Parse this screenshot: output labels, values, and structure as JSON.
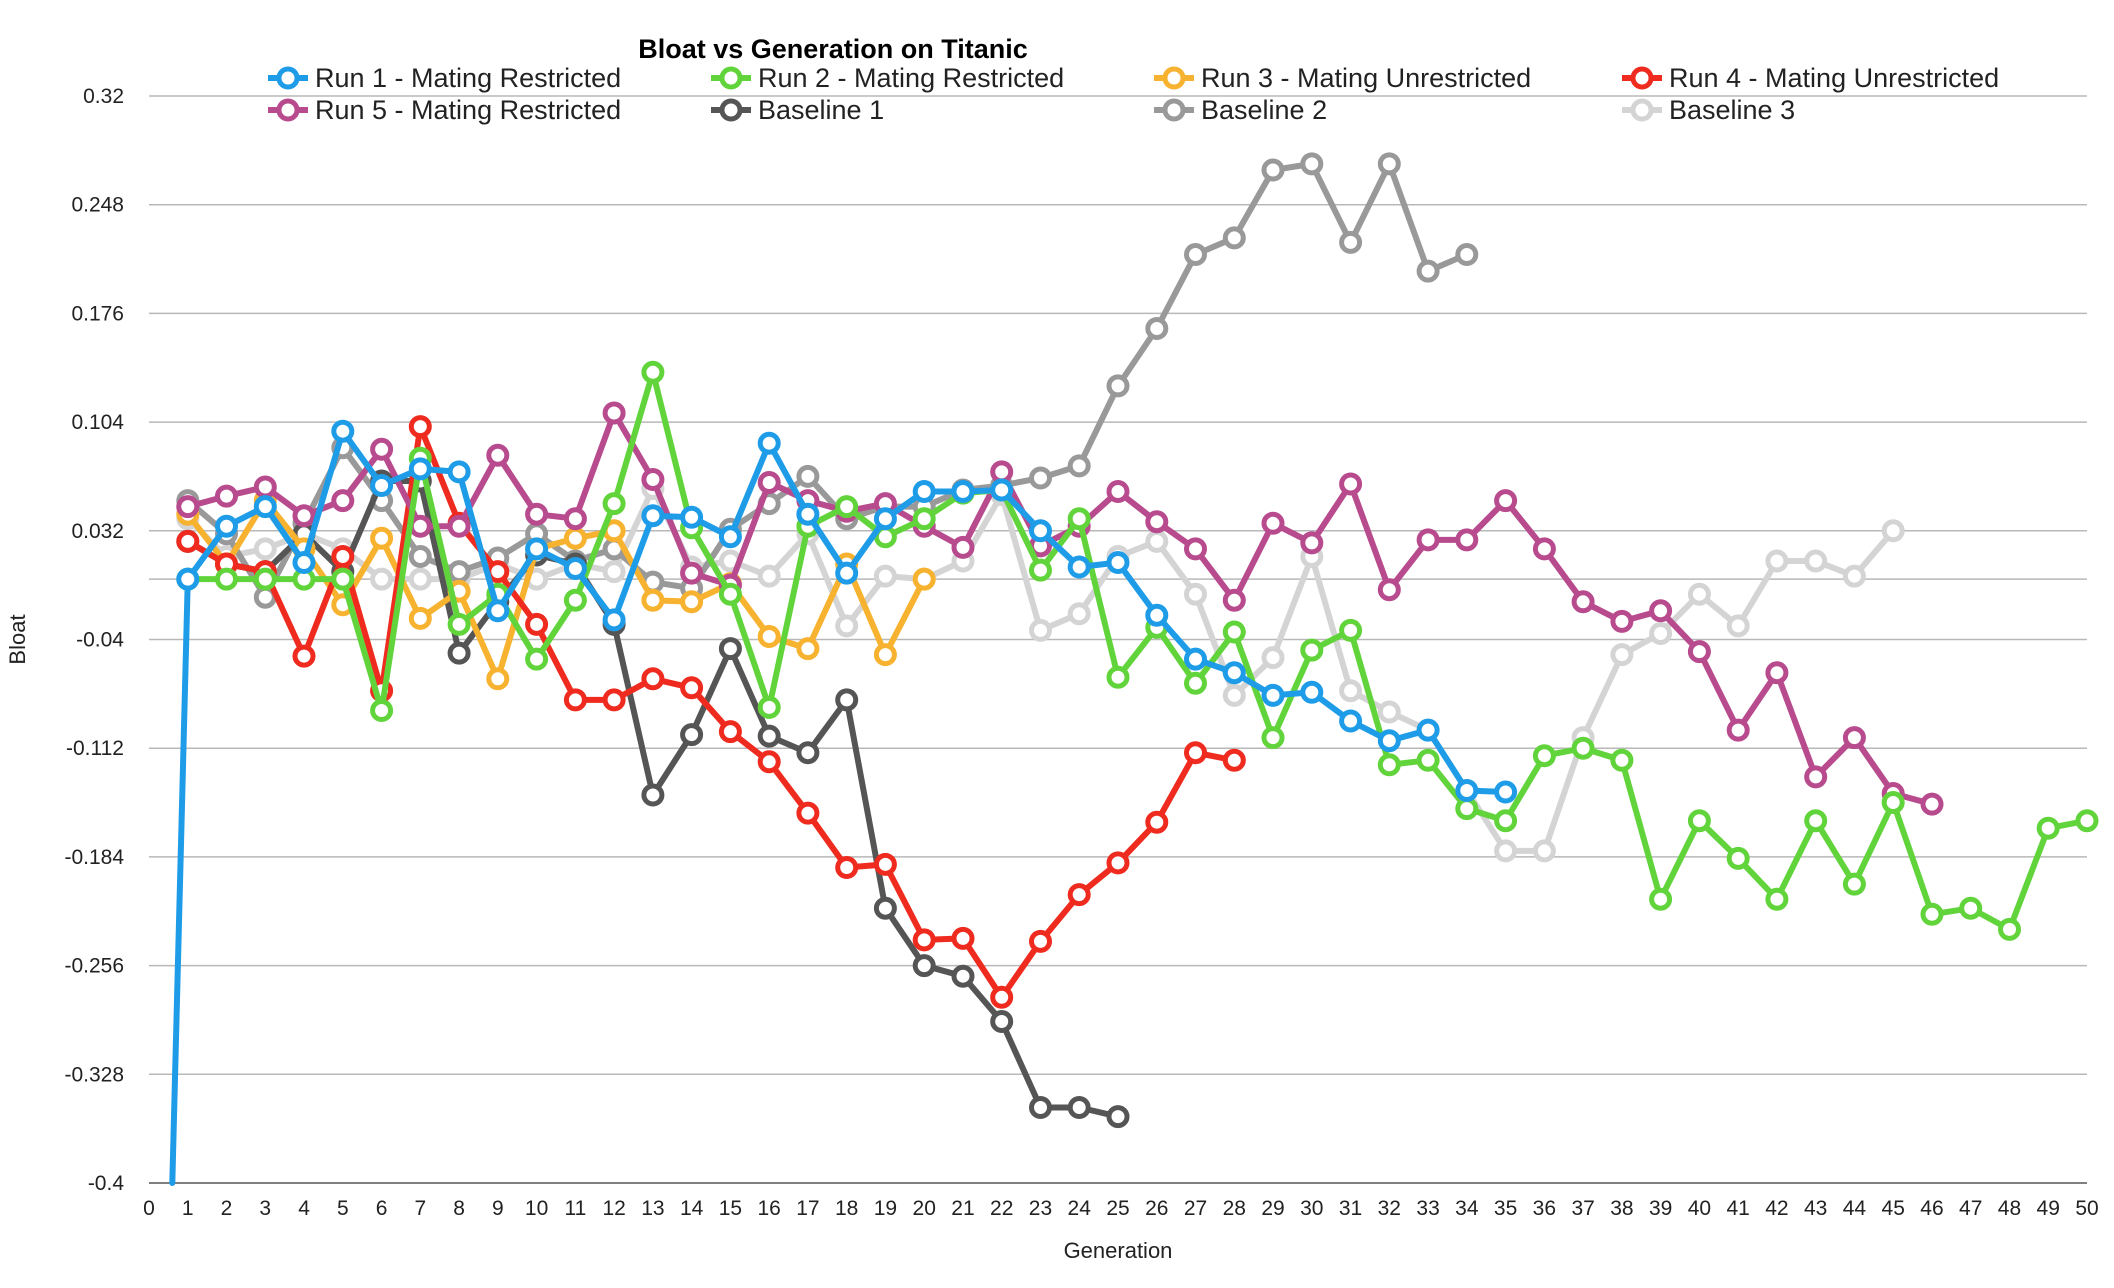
{
  "chart_data": {
    "type": "line",
    "title": "Bloat vs Generation on Titanic",
    "xlabel": "Generation",
    "ylabel": "Bloat",
    "xlim": [
      0,
      50
    ],
    "ylim": [
      -0.4,
      0.32
    ],
    "xticks": [
      0,
      1,
      2,
      3,
      4,
      5,
      6,
      7,
      8,
      9,
      10,
      11,
      12,
      13,
      14,
      15,
      16,
      17,
      18,
      19,
      20,
      21,
      22,
      23,
      24,
      25,
      26,
      27,
      28,
      29,
      30,
      31,
      32,
      33,
      34,
      35,
      36,
      37,
      38,
      39,
      40,
      41,
      42,
      43,
      44,
      45,
      46,
      47,
      48,
      49,
      50
    ],
    "yticks": [
      "0.32",
      "0.248",
      "0.176",
      "0.104",
      "0.032",
      "-0.04",
      "-0.112",
      "-0.184",
      "-0.256",
      "-0.328",
      "-0.4"
    ],
    "grid": true,
    "legend_position": "top",
    "series": [
      {
        "name": "Baseline 3",
        "color": "#d4d4d4",
        "x": [
          1,
          2,
          3,
          4,
          5,
          6,
          7,
          8,
          9,
          10,
          11,
          12,
          13,
          14,
          15,
          16,
          17,
          18,
          19,
          20,
          21,
          22,
          23,
          24,
          25,
          26,
          27,
          28,
          29,
          30,
          31,
          32,
          33,
          34,
          35,
          36,
          37,
          38,
          39,
          40,
          41,
          42,
          43,
          44,
          45
        ],
        "y": [
          0.04,
          0.015,
          0.02,
          0.03,
          0.02,
          0.0,
          0.0,
          0.0,
          0.01,
          0.0,
          0.01,
          0.005,
          0.06,
          0.008,
          0.012,
          0.002,
          0.03,
          -0.031,
          0.002,
          0.0,
          0.012,
          0.056,
          -0.034,
          -0.023,
          0.015,
          0.025,
          -0.01,
          -0.077,
          -0.052,
          0.015,
          -0.074,
          -0.088,
          -0.1,
          -0.14,
          -0.18,
          -0.18,
          -0.105,
          -0.05,
          -0.036,
          -0.01,
          -0.031,
          0.012,
          0.012,
          0.002,
          0.032
        ]
      },
      {
        "name": "Baseline 2",
        "color": "#999999",
        "x": [
          1,
          2,
          3,
          4,
          5,
          6,
          7,
          8,
          9,
          10,
          11,
          12,
          13,
          14,
          15,
          16,
          17,
          18,
          19,
          20,
          21,
          22,
          23,
          24,
          25,
          26,
          27,
          28,
          29,
          30,
          31,
          32,
          33,
          34
        ],
        "y": [
          0.052,
          0.03,
          -0.012,
          0.037,
          0.087,
          0.052,
          0.015,
          0.005,
          0.014,
          0.03,
          0.012,
          0.02,
          -0.002,
          -0.006,
          0.033,
          0.05,
          0.068,
          0.04,
          0.048,
          0.048,
          0.059,
          0.062,
          0.067,
          0.075,
          0.128,
          0.166,
          0.215,
          0.226,
          0.271,
          0.275,
          0.223,
          0.275,
          0.204,
          0.215
        ]
      },
      {
        "name": "Baseline 1",
        "color": "#555555",
        "x": [
          1,
          2,
          3,
          4,
          5,
          6,
          7,
          8,
          9,
          10,
          11,
          12,
          13,
          14,
          15,
          16,
          17,
          18,
          19,
          20,
          21,
          22,
          23,
          24,
          25
        ],
        "y": [
          0.025,
          0.01,
          0.005,
          0.03,
          0.005,
          0.065,
          0.065,
          -0.049,
          -0.015,
          0.016,
          0.01,
          -0.03,
          -0.143,
          -0.103,
          -0.046,
          -0.104,
          -0.115,
          -0.08,
          -0.218,
          -0.256,
          -0.263,
          -0.293,
          -0.35,
          -0.35,
          -0.356
        ]
      },
      {
        "name": "Run 3 - Mating Unrestricted",
        "color": "#f7b22f",
        "x": [
          1,
          2,
          3,
          4,
          5,
          6,
          7,
          8,
          9,
          10,
          11,
          12,
          13,
          14,
          15,
          16,
          17,
          18,
          19,
          20
        ],
        "y": [
          0.043,
          0.01,
          0.052,
          0.02,
          -0.017,
          0.027,
          -0.026,
          -0.008,
          -0.066,
          0.02,
          0.027,
          0.032,
          -0.014,
          -0.015,
          -0.003,
          -0.038,
          -0.046,
          0.01,
          -0.05,
          0.0
        ]
      },
      {
        "name": "Run 4 - Mating Unrestricted",
        "color": "#ef2b1f",
        "x": [
          1,
          2,
          3,
          4,
          5,
          6,
          7,
          8,
          9,
          10,
          11,
          12,
          13,
          14,
          15,
          16,
          17,
          18,
          19,
          20,
          21,
          22,
          23,
          24,
          25,
          26,
          27,
          28
        ],
        "y": [
          0.025,
          0.01,
          0.005,
          -0.051,
          0.015,
          -0.074,
          0.101,
          0.037,
          0.005,
          -0.03,
          -0.08,
          -0.08,
          -0.066,
          -0.072,
          -0.101,
          -0.121,
          -0.155,
          -0.191,
          -0.189,
          -0.239,
          -0.238,
          -0.277,
          -0.24,
          -0.209,
          -0.188,
          -0.161,
          -0.115,
          -0.12
        ]
      },
      {
        "name": "Run 5 - Mating Restricted",
        "color": "#b84a8e",
        "x": [
          1,
          2,
          3,
          4,
          5,
          6,
          7,
          8,
          9,
          10,
          11,
          12,
          13,
          14,
          15,
          16,
          17,
          18,
          19,
          20,
          21,
          22,
          23,
          24,
          25,
          26,
          27,
          28,
          29,
          30,
          31,
          32,
          33,
          34,
          35,
          36,
          37,
          38,
          39,
          40,
          41,
          42,
          43,
          44,
          45,
          46
        ],
        "y": [
          0.048,
          0.055,
          0.061,
          0.042,
          0.052,
          0.086,
          0.035,
          0.035,
          0.082,
          0.043,
          0.04,
          0.11,
          0.066,
          0.004,
          -0.004,
          0.064,
          0.052,
          0.045,
          0.05,
          0.035,
          0.021,
          0.071,
          0.022,
          0.035,
          0.058,
          0.038,
          0.02,
          -0.014,
          0.037,
          0.024,
          0.063,
          -0.007,
          0.026,
          0.026,
          0.052,
          0.02,
          -0.015,
          -0.028,
          -0.021,
          -0.048,
          -0.1,
          -0.062,
          -0.131,
          -0.105,
          -0.142,
          -0.149
        ]
      },
      {
        "name": "Run 2 - Mating Restricted",
        "color": "#62d43b",
        "x": [
          1,
          2,
          3,
          4,
          5,
          6,
          7,
          8,
          9,
          10,
          11,
          12,
          13,
          14,
          15,
          16,
          17,
          18,
          19,
          20,
          21,
          22,
          23,
          24,
          25,
          26,
          27,
          28,
          29,
          30,
          31,
          32,
          33,
          34,
          35,
          36,
          37,
          38,
          39,
          40,
          41,
          42,
          43,
          44,
          45,
          46,
          47,
          48,
          49,
          50
        ],
        "y": [
          0.0,
          0.0,
          0.0,
          0.0,
          0.0,
          -0.087,
          0.08,
          -0.03,
          -0.01,
          -0.053,
          -0.014,
          0.05,
          0.137,
          0.034,
          -0.01,
          -0.085,
          0.035,
          0.048,
          0.028,
          0.04,
          0.057,
          0.059,
          0.006,
          0.04,
          -0.065,
          -0.032,
          -0.069,
          -0.035,
          -0.105,
          -0.047,
          -0.034,
          -0.123,
          -0.12,
          -0.152,
          -0.16,
          -0.117,
          -0.112,
          -0.12,
          -0.212,
          -0.16,
          -0.185,
          -0.212,
          -0.16,
          -0.202,
          -0.148,
          -0.222,
          -0.218,
          -0.232,
          -0.165,
          -0.16
        ]
      },
      {
        "name": "Run 1 - Mating Restricted",
        "color": "#1e9ce8",
        "x": [
          0.6,
          1,
          2,
          3,
          4,
          5,
          6,
          7,
          8,
          9,
          10,
          11,
          12,
          13,
          14,
          15,
          16,
          17,
          18,
          19,
          20,
          21,
          22,
          23,
          24,
          25,
          26,
          27,
          28,
          29,
          30,
          31,
          32,
          33,
          34,
          35
        ],
        "y": [
          -0.4,
          0.0,
          0.035,
          0.048,
          0.011,
          0.098,
          0.062,
          0.073,
          0.071,
          -0.021,
          0.02,
          0.007,
          -0.027,
          0.042,
          0.041,
          0.028,
          0.09,
          0.043,
          0.004,
          0.04,
          0.058,
          0.058,
          0.059,
          0.032,
          0.008,
          0.011,
          -0.024,
          -0.053,
          -0.062,
          -0.077,
          -0.075,
          -0.094,
          -0.107,
          -0.1,
          -0.14,
          -0.141
        ]
      }
    ],
    "legend": [
      "Run 1 - Mating Restricted",
      "Run 2 - Mating Restricted",
      "Run 3 - Mating Unrestricted",
      "Run 4 - Mating Unrestricted",
      "Run 5 - Mating Restricted",
      "Baseline 1",
      "Baseline 2",
      "Baseline 3"
    ],
    "legend_colors": [
      "#1e9ce8",
      "#62d43b",
      "#f7b22f",
      "#ef2b1f",
      "#b84a8e",
      "#555555",
      "#999999",
      "#d4d4d4"
    ]
  }
}
